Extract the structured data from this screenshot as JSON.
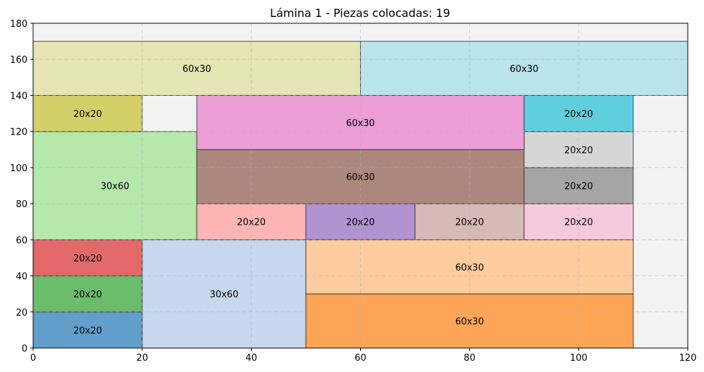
{
  "chart_data": {
    "type": "rectangle-packing",
    "title": "Lámina 1 - Piezas colocadas: 19",
    "xlim": [
      0,
      120
    ],
    "ylim": [
      0,
      180
    ],
    "x_ticks": [
      0,
      20,
      40,
      60,
      80,
      100,
      120
    ],
    "y_ticks": [
      0,
      20,
      40,
      60,
      80,
      100,
      120,
      140,
      160,
      180
    ],
    "grid": true,
    "sheet_color": "#f2f2f2",
    "pieces": [
      {
        "label": "20x20",
        "x": 0,
        "y": 0,
        "w": 20,
        "h": 20,
        "color": "#629fca"
      },
      {
        "label": "20x20",
        "x": 0,
        "y": 20,
        "w": 20,
        "h": 20,
        "color": "#6bbc6b"
      },
      {
        "label": "20x20",
        "x": 0,
        "y": 40,
        "w": 20,
        "h": 20,
        "color": "#e36869"
      },
      {
        "label": "30x60",
        "x": 0,
        "y": 60,
        "w": 30,
        "h": 60,
        "color": "#b6e8ac"
      },
      {
        "label": "20x20",
        "x": 0,
        "y": 120,
        "w": 20,
        "h": 20,
        "color": "#d4d069"
      },
      {
        "label": "60x30",
        "x": 0,
        "y": 140,
        "w": 60,
        "h": 30,
        "color": "#e4e5b2"
      },
      {
        "label": "30x60",
        "x": 20,
        "y": 0,
        "w": 30,
        "h": 60,
        "color": "#c6d7ee"
      },
      {
        "label": "60x30",
        "x": 50,
        "y": 0,
        "w": 60,
        "h": 30,
        "color": "#ffa557"
      },
      {
        "label": "60x30",
        "x": 50,
        "y": 30,
        "w": 60,
        "h": 30,
        "color": "#ffcc9f"
      },
      {
        "label": "20x20",
        "x": 30,
        "y": 60,
        "w": 20,
        "h": 20,
        "color": "#ffb5b4"
      },
      {
        "label": "20x20",
        "x": 50,
        "y": 60,
        "w": 20,
        "h": 20,
        "color": "#b193d1"
      },
      {
        "label": "20x20",
        "x": 70,
        "y": 60,
        "w": 20,
        "h": 20,
        "color": "#d6bab5"
      },
      {
        "label": "20x20",
        "x": 90,
        "y": 60,
        "w": 20,
        "h": 20,
        "color": "#f7c9de"
      },
      {
        "label": "60x30",
        "x": 30,
        "y": 80,
        "w": 60,
        "h": 30,
        "color": "#ad887f"
      },
      {
        "label": "20x20",
        "x": 90,
        "y": 80,
        "w": 20,
        "h": 20,
        "color": "#a5a5a5"
      },
      {
        "label": "20x20",
        "x": 90,
        "y": 100,
        "w": 20,
        "h": 20,
        "color": "#d6d6d6"
      },
      {
        "label": "60x30",
        "x": 30,
        "y": 110,
        "w": 60,
        "h": 30,
        "color": "#eb9fd6"
      },
      {
        "label": "20x20",
        "x": 90,
        "y": 120,
        "w": 20,
        "h": 20,
        "color": "#5fcfde"
      },
      {
        "label": "60x30",
        "x": 60,
        "y": 140,
        "w": 60,
        "h": 30,
        "color": "#b9e4ec"
      }
    ]
  }
}
